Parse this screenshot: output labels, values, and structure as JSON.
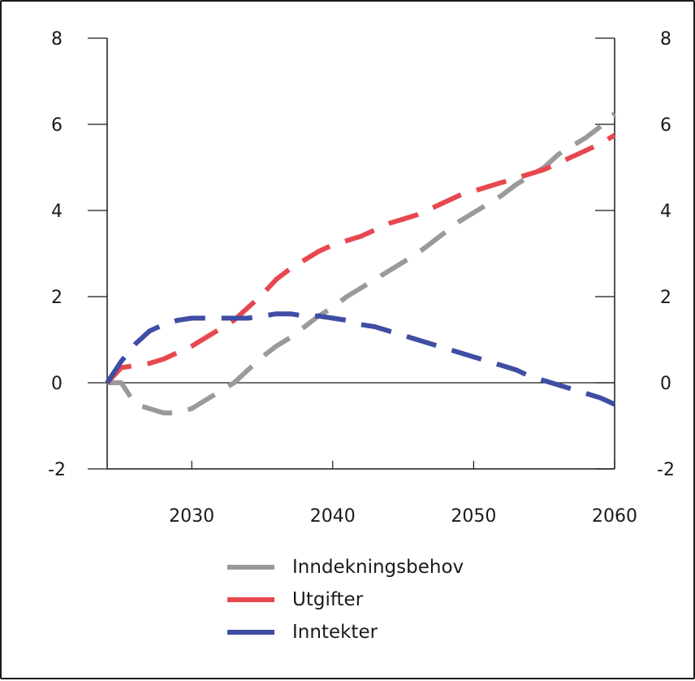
{
  "chart_data": {
    "type": "line",
    "title": "",
    "xlabel": "",
    "ylabel": "",
    "xlim": [
      2024,
      2060
    ],
    "ylim": [
      -2,
      8
    ],
    "x_ticks": [
      2030,
      2040,
      2050,
      2060
    ],
    "y_ticks": [
      -2,
      0,
      2,
      4,
      6,
      8
    ],
    "y_axis_left_labels": [
      "-2",
      "0",
      "2",
      "4",
      "6",
      "8"
    ],
    "y_axis_right_labels": [
      "-2",
      "0",
      "2",
      "4",
      "6",
      "8"
    ],
    "x_tick_labels": [
      "2030",
      "2040",
      "2050",
      "2060"
    ],
    "grid": false,
    "legend_position": "bottom",
    "series": [
      {
        "name": "Inndekningsbehov",
        "color": "#9a9a9a",
        "line_style": "dashed",
        "points": [
          [
            2024,
            0
          ],
          [
            2025,
            0.0
          ],
          [
            2026,
            -0.5
          ],
          [
            2027,
            -0.6
          ],
          [
            2028,
            -0.7
          ],
          [
            2029,
            -0.7
          ],
          [
            2030,
            -0.6
          ],
          [
            2031,
            -0.4
          ],
          [
            2032,
            -0.2
          ],
          [
            2033,
            0.0
          ],
          [
            2034,
            0.3
          ],
          [
            2035,
            0.6
          ],
          [
            2036,
            0.85
          ],
          [
            2037,
            1.05
          ],
          [
            2038,
            1.3
          ],
          [
            2039,
            1.55
          ],
          [
            2040,
            1.75
          ],
          [
            2041,
            2.0
          ],
          [
            2042,
            2.2
          ],
          [
            2043,
            2.4
          ],
          [
            2044,
            2.6
          ],
          [
            2045,
            2.8
          ],
          [
            2046,
            3.0
          ],
          [
            2047,
            3.25
          ],
          [
            2048,
            3.5
          ],
          [
            2049,
            3.75
          ],
          [
            2050,
            3.95
          ],
          [
            2051,
            4.15
          ],
          [
            2052,
            4.35
          ],
          [
            2053,
            4.6
          ],
          [
            2054,
            4.8
          ],
          [
            2055,
            5.0
          ],
          [
            2056,
            5.3
          ],
          [
            2057,
            5.5
          ],
          [
            2058,
            5.7
          ],
          [
            2059,
            5.95
          ],
          [
            2060,
            6.25
          ]
        ]
      },
      {
        "name": "Utgifter",
        "color": "#e8474f",
        "line_style": "dashed",
        "points": [
          [
            2024,
            0
          ],
          [
            2025,
            0.35
          ],
          [
            2026,
            0.4
          ],
          [
            2027,
            0.45
          ],
          [
            2028,
            0.55
          ],
          [
            2029,
            0.7
          ],
          [
            2030,
            0.85
          ],
          [
            2031,
            1.05
          ],
          [
            2032,
            1.25
          ],
          [
            2033,
            1.45
          ],
          [
            2034,
            1.75
          ],
          [
            2035,
            2.05
          ],
          [
            2036,
            2.4
          ],
          [
            2037,
            2.65
          ],
          [
            2038,
            2.85
          ],
          [
            2039,
            3.05
          ],
          [
            2040,
            3.2
          ],
          [
            2041,
            3.3
          ],
          [
            2042,
            3.4
          ],
          [
            2043,
            3.55
          ],
          [
            2044,
            3.7
          ],
          [
            2045,
            3.8
          ],
          [
            2046,
            3.9
          ],
          [
            2047,
            4.05
          ],
          [
            2048,
            4.2
          ],
          [
            2049,
            4.35
          ],
          [
            2050,
            4.45
          ],
          [
            2051,
            4.55
          ],
          [
            2052,
            4.65
          ],
          [
            2053,
            4.75
          ],
          [
            2054,
            4.85
          ],
          [
            2055,
            4.95
          ],
          [
            2056,
            5.1
          ],
          [
            2057,
            5.25
          ],
          [
            2058,
            5.4
          ],
          [
            2059,
            5.55
          ],
          [
            2060,
            5.75
          ]
        ]
      },
      {
        "name": "Inntekter",
        "color": "#3f4ea3",
        "line_style": "dashed",
        "points": [
          [
            2024,
            0
          ],
          [
            2025,
            0.5
          ],
          [
            2026,
            0.9
          ],
          [
            2027,
            1.2
          ],
          [
            2028,
            1.35
          ],
          [
            2029,
            1.45
          ],
          [
            2030,
            1.5
          ],
          [
            2031,
            1.5
          ],
          [
            2032,
            1.5
          ],
          [
            2033,
            1.5
          ],
          [
            2034,
            1.5
          ],
          [
            2035,
            1.55
          ],
          [
            2036,
            1.6
          ],
          [
            2037,
            1.6
          ],
          [
            2038,
            1.55
          ],
          [
            2039,
            1.55
          ],
          [
            2040,
            1.5
          ],
          [
            2041,
            1.45
          ],
          [
            2042,
            1.35
          ],
          [
            2043,
            1.3
          ],
          [
            2044,
            1.2
          ],
          [
            2045,
            1.1
          ],
          [
            2046,
            1.0
          ],
          [
            2047,
            0.9
          ],
          [
            2048,
            0.8
          ],
          [
            2049,
            0.7
          ],
          [
            2050,
            0.6
          ],
          [
            2051,
            0.5
          ],
          [
            2052,
            0.4
          ],
          [
            2053,
            0.3
          ],
          [
            2054,
            0.15
          ],
          [
            2055,
            0.05
          ],
          [
            2056,
            -0.05
          ],
          [
            2057,
            -0.15
          ],
          [
            2058,
            -0.25
          ],
          [
            2059,
            -0.35
          ],
          [
            2060,
            -0.5
          ]
        ]
      }
    ]
  }
}
